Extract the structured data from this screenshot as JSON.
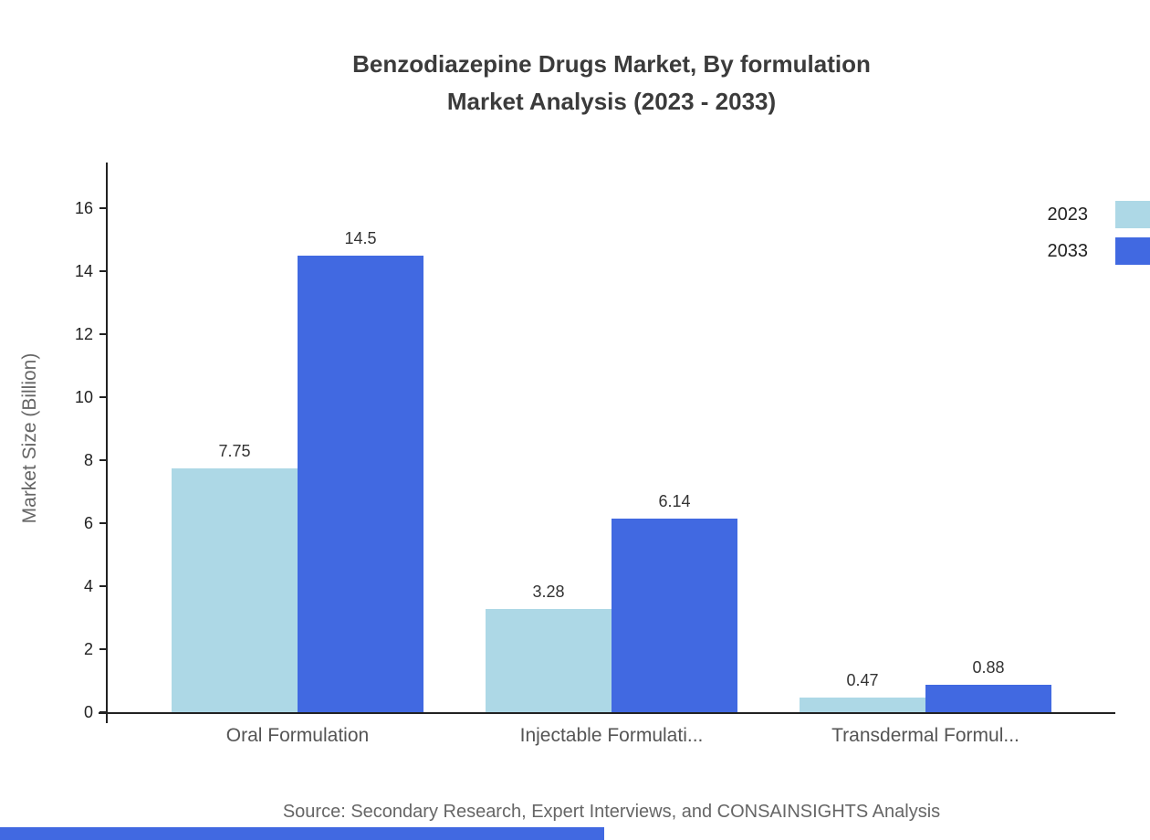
{
  "chart_data": {
    "type": "bar",
    "title_line1": "Benzodiazepine Drugs Market, By formulation",
    "title_line2": "Market Analysis (2023 - 2033)",
    "categories": [
      "Oral Formulation",
      "Injectable Formulati...",
      "Transdermal Formul..."
    ],
    "series": [
      {
        "name": "2023",
        "values": [
          7.75,
          3.28,
          0.47
        ]
      },
      {
        "name": "2033",
        "values": [
          14.5,
          6.14,
          0.88
        ]
      }
    ],
    "colors": [
      "#ADD8E6",
      "#4169E1"
    ],
    "ylabel": "Market Size (Billion)",
    "ylim": [
      0,
      16
    ],
    "yticks": [
      0,
      2,
      4,
      6,
      8,
      10,
      12,
      14,
      16
    ],
    "legend": {
      "position": "top-right",
      "entries": [
        "2023",
        "2033"
      ]
    },
    "grid": false,
    "source": "Source: Secondary Research, Expert Interviews, and CONSAINSIGHTS Analysis"
  }
}
